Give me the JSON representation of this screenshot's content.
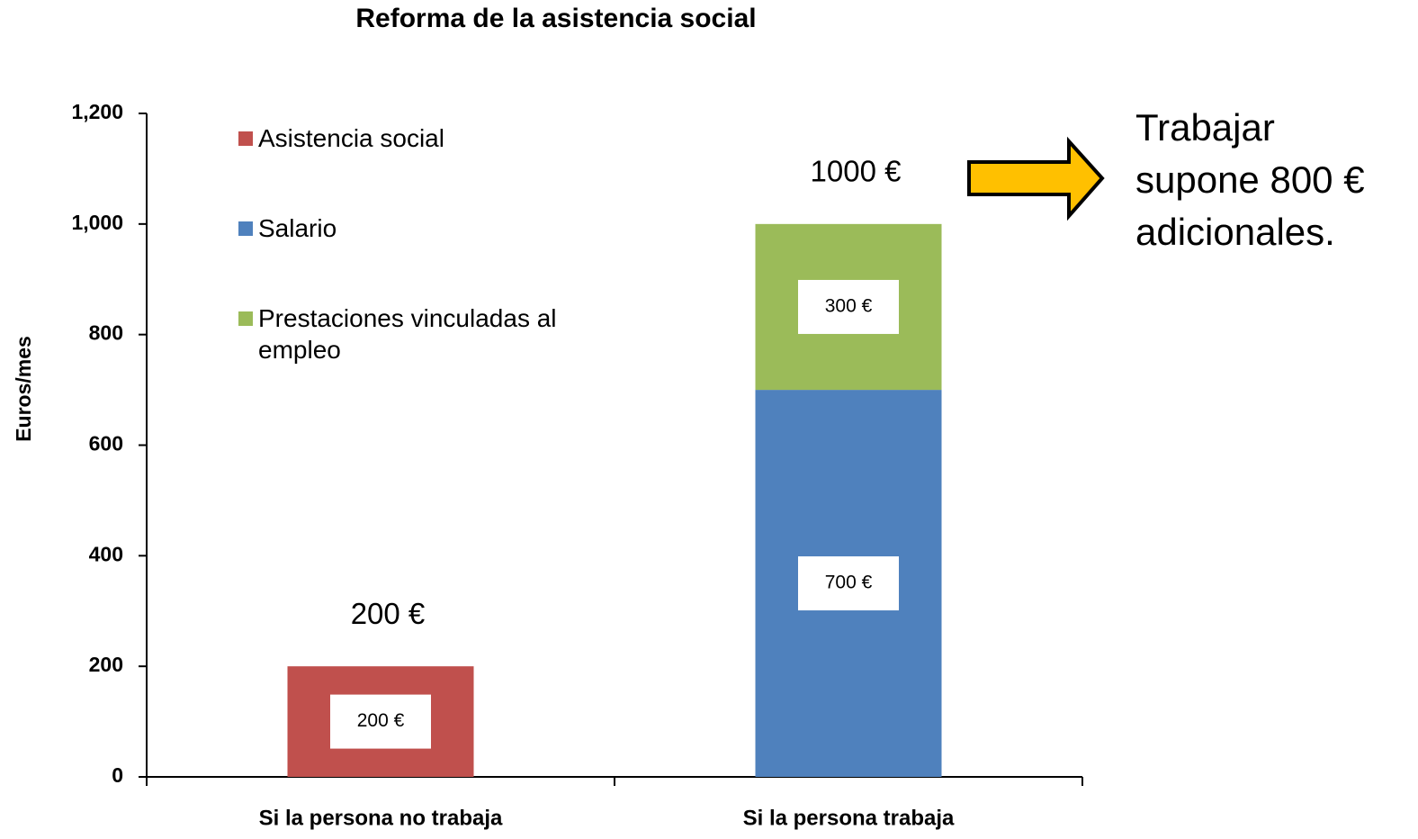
{
  "chart_data": {
    "type": "stacked_bar",
    "title": "Reforma de la asistencia social",
    "y_axis_label": "Euros/mes",
    "categories": [
      "Si la persona no trabaja",
      "Si la persona  trabaja"
    ],
    "series": [
      {
        "name": "Asistencia social",
        "color": "#c0504d",
        "values": [
          200,
          null
        ],
        "value_labels": [
          "200 €",
          null
        ]
      },
      {
        "name": "Salario",
        "color": "#4f81bd",
        "values": [
          null,
          700
        ],
        "value_labels": [
          null,
          "700 €"
        ]
      },
      {
        "name": "Prestaciones vinculadas al empleo",
        "color": "#9bbb59",
        "values": [
          null,
          300
        ],
        "value_labels": [
          null,
          "300 €"
        ]
      }
    ],
    "totals": [
      200,
      1000
    ],
    "total_labels": [
      "200 €",
      "1000 €"
    ],
    "ylim": [
      0,
      1200
    ],
    "yticks": [
      0,
      200,
      400,
      600,
      800,
      {
        "value": 1000,
        "label": "1,000"
      },
      {
        "value": 1200,
        "label": "1,200"
      }
    ],
    "annotation": [
      "Trabajar",
      "supone 800 €",
      "adicionales."
    ]
  }
}
